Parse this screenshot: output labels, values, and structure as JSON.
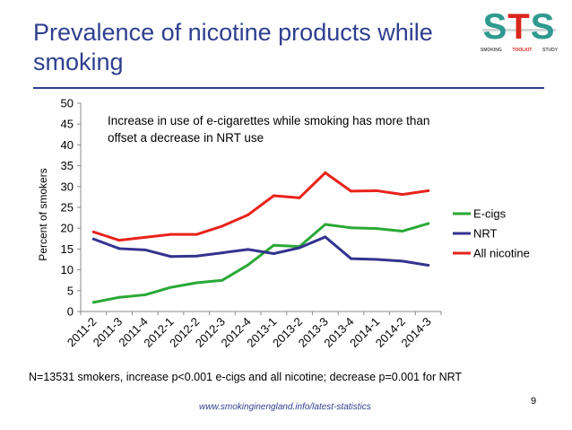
{
  "slide": {
    "title": "Prevalence of nicotine products while smoking",
    "footnote": "N=13531 smokers, increase p<0.001 e-cigs and all nicotine; decrease p=0.001 for NRT",
    "source": "www.smokinginengland.info/latest-statistics",
    "page_number": "9"
  },
  "logo": {
    "letters": [
      "S",
      "T",
      "S"
    ],
    "subtitle": [
      "SMOKING",
      "TOOLKIT",
      "STUDY"
    ]
  },
  "colors": {
    "title": "#2e3f8f",
    "ecigs": "#2aa836",
    "nrt": "#33338f",
    "all_nicotine": "#e8231b"
  },
  "chart_data": {
    "type": "line",
    "title": "",
    "annotation": "Increase in use of e-cigarettes while smoking has more than offset a decrease in NRT use",
    "xlabel": "",
    "ylabel": "Percent of smokers",
    "ylim": [
      0,
      50
    ],
    "yticks": [
      0,
      5,
      10,
      15,
      20,
      25,
      30,
      35,
      40,
      45,
      50
    ],
    "legend_position": "right",
    "categories": [
      "2011-2",
      "2011-3",
      "2011-4",
      "2012-1",
      "2012-2",
      "2012-3",
      "2012-4",
      "2013-1",
      "2013-2",
      "2013-3",
      "2013-4",
      "2014-1",
      "2014-2",
      "2014-3"
    ],
    "series": [
      {
        "name": "E-cigs",
        "color": "#2aa836",
        "values": [
          2.2,
          3.4,
          4.0,
          5.8,
          6.9,
          7.5,
          11.2,
          15.9,
          15.6,
          20.9,
          20.1,
          19.9,
          19.3,
          21.1
        ]
      },
      {
        "name": "NRT",
        "color": "#33338f",
        "values": [
          17.4,
          15.1,
          14.8,
          13.2,
          13.3,
          14.1,
          14.9,
          13.9,
          15.3,
          17.9,
          12.7,
          12.5,
          12.1,
          11.1
        ]
      },
      {
        "name": "All nicotine",
        "color": "#e8231b",
        "values": [
          19.1,
          17.1,
          17.8,
          18.5,
          18.5,
          20.5,
          23.2,
          27.8,
          27.3,
          33.3,
          28.9,
          29.0,
          28.1,
          29.0
        ]
      }
    ]
  }
}
